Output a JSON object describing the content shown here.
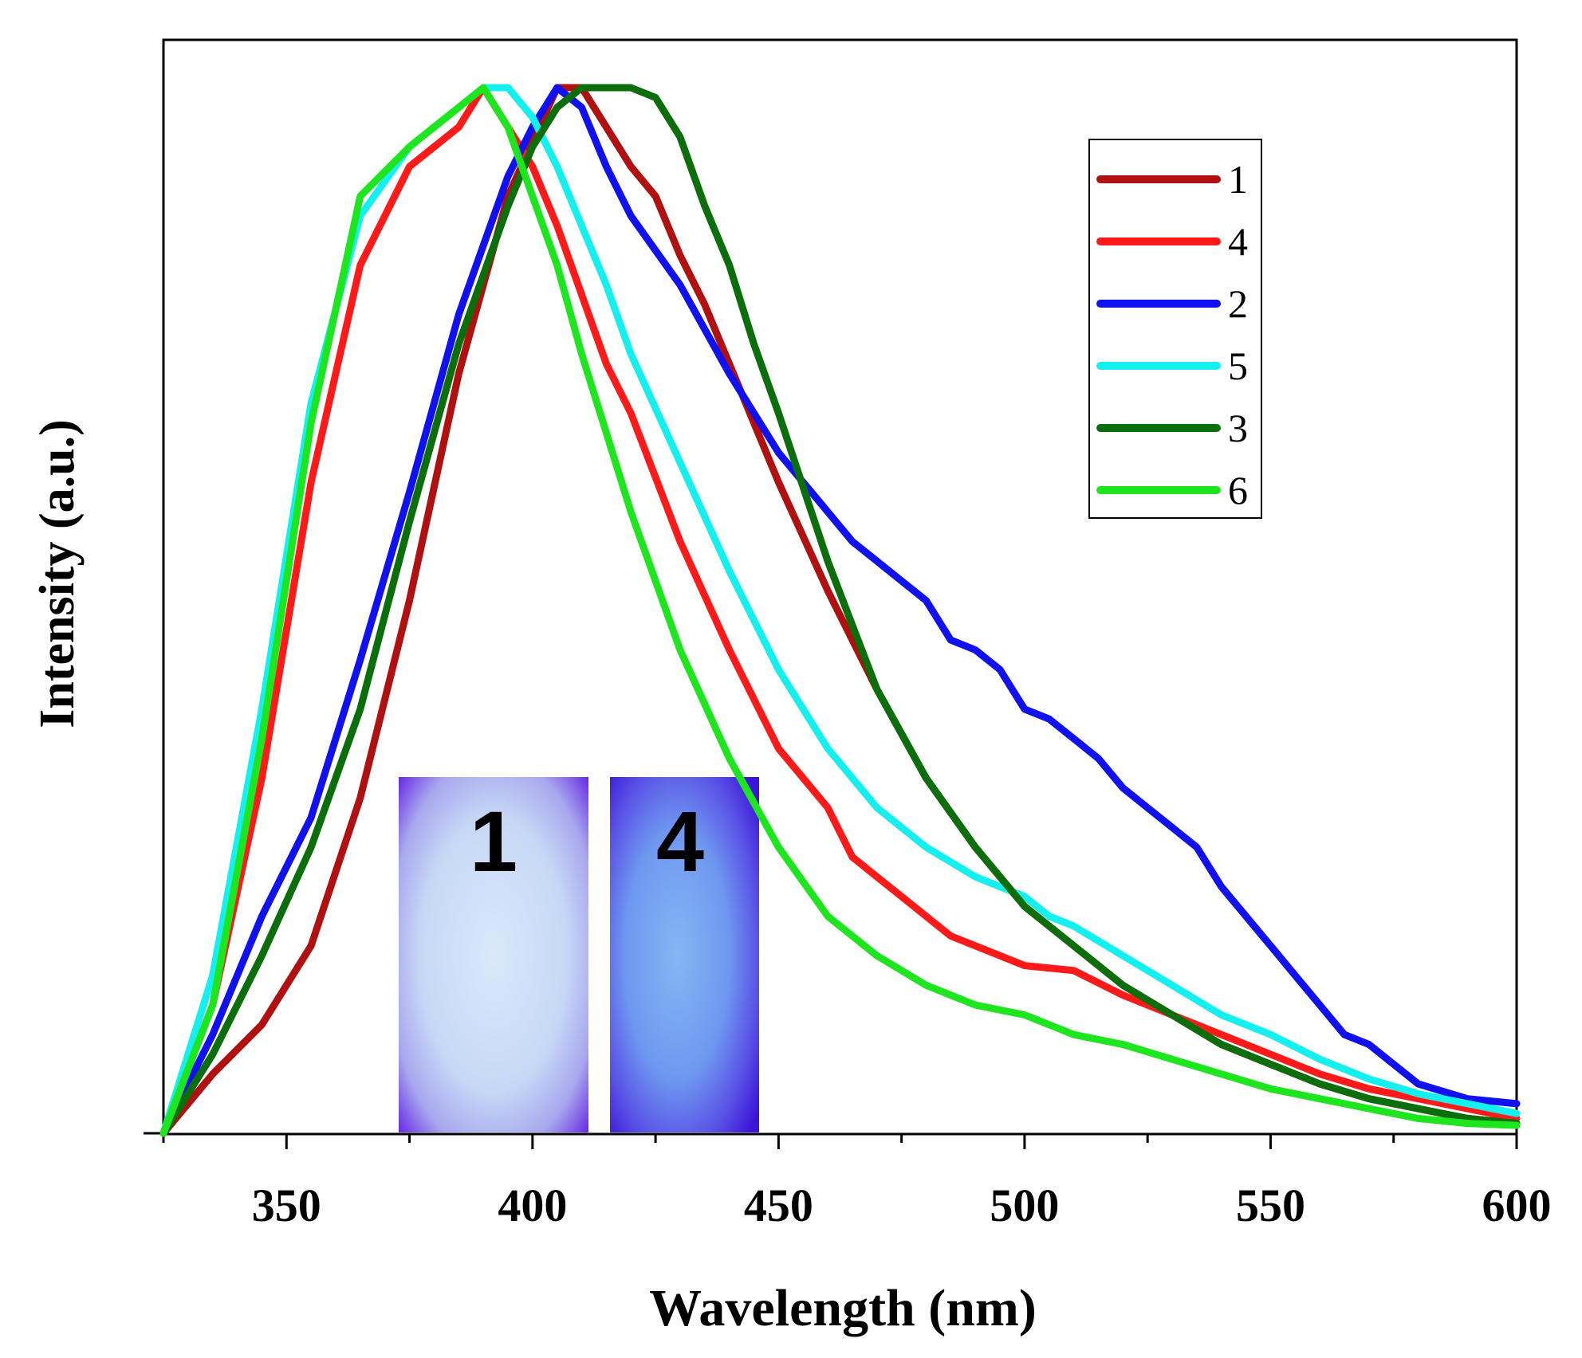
{
  "chart_data": {
    "type": "line",
    "title": "",
    "xlabel": "Wavelength (nm)",
    "ylabel": "Intensity (a.u.)",
    "xlim": [
      325,
      600
    ],
    "ylim": [
      0,
      1.07
    ],
    "xticks": [
      350,
      400,
      450,
      500,
      550,
      600
    ],
    "yticks": [],
    "grid": false,
    "legend": {
      "position": "top-right"
    },
    "series": [
      {
        "name": "1",
        "color": "#b01010",
        "x": [
          325,
          335,
          345,
          355,
          365,
          375,
          385,
          395,
          405,
          410,
          415,
          420,
          425,
          430,
          435,
          440,
          450,
          460,
          470,
          480,
          490,
          500,
          510,
          520,
          530,
          540,
          550,
          560,
          570,
          580,
          590,
          600
        ],
        "y": [
          0.0,
          0.06,
          0.11,
          0.19,
          0.34,
          0.54,
          0.77,
          0.95,
          1.06,
          1.06,
          1.02,
          0.98,
          0.95,
          0.89,
          0.84,
          0.78,
          0.66,
          0.55,
          0.45,
          0.36,
          0.29,
          0.23,
          0.19,
          0.15,
          0.12,
          0.09,
          0.07,
          0.05,
          0.035,
          0.025,
          0.015,
          0.01
        ]
      },
      {
        "name": "4",
        "color": "#ff1a1a",
        "x": [
          325,
          335,
          345,
          355,
          365,
          375,
          380,
          385,
          390,
          395,
          400,
          405,
          410,
          415,
          420,
          430,
          440,
          450,
          460,
          465,
          470,
          480,
          485,
          490,
          500,
          510,
          520,
          530,
          540,
          550,
          560,
          570,
          580,
          590,
          600
        ],
        "y": [
          0.0,
          0.13,
          0.36,
          0.66,
          0.88,
          0.98,
          1.0,
          1.02,
          1.06,
          1.02,
          0.98,
          0.92,
          0.85,
          0.78,
          0.73,
          0.6,
          0.49,
          0.39,
          0.33,
          0.28,
          0.26,
          0.22,
          0.2,
          0.19,
          0.17,
          0.165,
          0.14,
          0.12,
          0.1,
          0.08,
          0.06,
          0.045,
          0.035,
          0.025,
          0.015
        ]
      },
      {
        "name": "2",
        "color": "#1010f0",
        "x": [
          325,
          335,
          345,
          355,
          365,
          375,
          385,
          395,
          400,
          405,
          410,
          415,
          420,
          430,
          440,
          450,
          455,
          460,
          465,
          470,
          475,
          480,
          485,
          490,
          495,
          500,
          505,
          510,
          515,
          520,
          530,
          535,
          540,
          545,
          550,
          555,
          560,
          565,
          570,
          575,
          580,
          590,
          600
        ],
        "y": [
          0.0,
          0.1,
          0.22,
          0.32,
          0.48,
          0.65,
          0.83,
          0.97,
          1.02,
          1.06,
          1.04,
          0.98,
          0.93,
          0.86,
          0.77,
          0.69,
          0.66,
          0.63,
          0.6,
          0.58,
          0.56,
          0.54,
          0.5,
          0.49,
          0.47,
          0.43,
          0.42,
          0.4,
          0.38,
          0.35,
          0.31,
          0.29,
          0.25,
          0.22,
          0.19,
          0.16,
          0.13,
          0.1,
          0.09,
          0.07,
          0.05,
          0.035,
          0.03
        ]
      },
      {
        "name": "5",
        "color": "#14f0f0",
        "x": [
          325,
          335,
          345,
          355,
          365,
          375,
          385,
          390,
          395,
          400,
          405,
          410,
          415,
          420,
          430,
          440,
          450,
          460,
          470,
          480,
          490,
          500,
          505,
          510,
          520,
          530,
          540,
          550,
          560,
          570,
          580,
          590,
          600
        ],
        "y": [
          0.0,
          0.16,
          0.43,
          0.74,
          0.93,
          1.0,
          1.04,
          1.06,
          1.06,
          1.03,
          0.98,
          0.92,
          0.86,
          0.79,
          0.68,
          0.57,
          0.47,
          0.39,
          0.33,
          0.29,
          0.26,
          0.24,
          0.22,
          0.21,
          0.18,
          0.15,
          0.12,
          0.1,
          0.075,
          0.055,
          0.04,
          0.03,
          0.02
        ]
      },
      {
        "name": "3",
        "color": "#0a6e0a",
        "x": [
          325,
          335,
          345,
          355,
          365,
          375,
          385,
          395,
          400,
          405,
          410,
          415,
          420,
          425,
          430,
          435,
          440,
          445,
          450,
          460,
          470,
          480,
          490,
          500,
          510,
          520,
          530,
          540,
          550,
          560,
          570,
          580,
          590,
          600
        ],
        "y": [
          0.0,
          0.08,
          0.18,
          0.29,
          0.43,
          0.62,
          0.8,
          0.94,
          1.0,
          1.04,
          1.06,
          1.06,
          1.06,
          1.05,
          1.01,
          0.94,
          0.88,
          0.8,
          0.73,
          0.58,
          0.45,
          0.36,
          0.29,
          0.23,
          0.19,
          0.15,
          0.12,
          0.09,
          0.07,
          0.05,
          0.035,
          0.025,
          0.015,
          0.01
        ]
      },
      {
        "name": "6",
        "color": "#1ee61e",
        "x": [
          325,
          335,
          345,
          355,
          365,
          375,
          380,
          385,
          390,
          395,
          400,
          405,
          410,
          415,
          420,
          430,
          440,
          450,
          460,
          470,
          480,
          490,
          500,
          505,
          510,
          520,
          530,
          540,
          550,
          560,
          570,
          580,
          590,
          600
        ],
        "y": [
          0.0,
          0.13,
          0.4,
          0.72,
          0.95,
          1.0,
          1.02,
          1.04,
          1.06,
          1.02,
          0.95,
          0.88,
          0.79,
          0.71,
          0.63,
          0.49,
          0.38,
          0.29,
          0.22,
          0.18,
          0.15,
          0.13,
          0.12,
          0.11,
          0.1,
          0.09,
          0.075,
          0.06,
          0.045,
          0.035,
          0.025,
          0.015,
          0.01,
          0.008
        ]
      }
    ],
    "insets": [
      {
        "label": "1"
      },
      {
        "label": "4"
      }
    ]
  }
}
